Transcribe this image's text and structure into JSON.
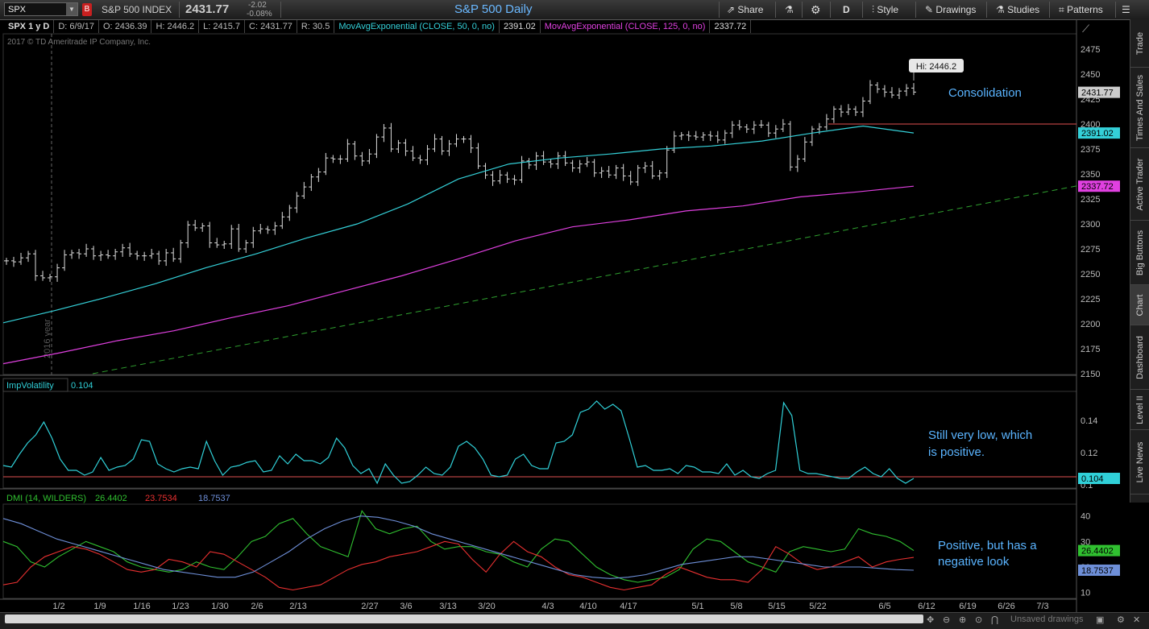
{
  "toolbar": {
    "symbol": "SPX",
    "symbol_badge": "B",
    "symbol_name": "S&P 500 INDEX",
    "last_price": "2431.77",
    "change": "-2.02",
    "change_pct": "-0.08%",
    "chart_title": "S&P 500 Daily",
    "share": "Share",
    "timeframe": "D",
    "style": "Style",
    "drawings": "Drawings",
    "studies": "Studies",
    "patterns": "Patterns"
  },
  "info_bar": {
    "symbol_period": "SPX 1 y D",
    "date": "D: 6/9/17",
    "open": "O: 2436.39",
    "high": "H: 2446.2",
    "low": "L: 2415.7",
    "close": "C: 2431.77",
    "range": "R: 30.5",
    "ema50_label": "MovAvgExponential (CLOSE, 50, 0, no)",
    "ema50_value": "2391.02",
    "ema125_label": "MovAvgExponential (CLOSE, 125, 0, no)",
    "ema125_value": "2337.72"
  },
  "copyright": "2017 © TD Ameritrade IP Company, Inc.",
  "colors": {
    "ema50": "#34d0d8",
    "ema125": "#e040e0",
    "trend": "#2fa02f",
    "resistance": "#e05050",
    "annotation": "#5ab4ff",
    "adx": "#6e8fd8",
    "di_plus": "#30c030",
    "di_minus": "#e83030",
    "iv": "#30d0d8"
  },
  "sidebar": [
    "Trade",
    "Times And Sales",
    "Active Trader",
    "Big Buttons",
    "Chart",
    "Dashboard",
    "Level II",
    "Live News"
  ],
  "bottom": {
    "unsaved": "Unsaved drawings"
  },
  "chart_data": [
    {
      "type": "ohlc",
      "title": "S&P 500 Daily",
      "ylim": [
        2150,
        2475
      ],
      "yticks": [
        2150,
        2175,
        2200,
        2225,
        2250,
        2275,
        2300,
        2325,
        2350,
        2375,
        2400,
        2425,
        2450,
        2475
      ],
      "xticks": [
        "1/2",
        "1/9",
        "1/16",
        "1/23",
        "1/30",
        "2/6",
        "2/13",
        "2/27",
        "3/6",
        "3/13",
        "3/20",
        "4/3",
        "4/10",
        "4/17",
        "5/1",
        "5/8",
        "5/15",
        "5/22",
        "6/5",
        "6/12",
        "6/19",
        "6/26",
        "7/3"
      ],
      "year_marker": "2016 year",
      "high_label": "Hi: 2446.2",
      "annotation": "Consolidation",
      "price_flag": "2431.77",
      "ema50_flag": "2391.02",
      "ema125_flag": "2337.72",
      "closes": [
        2263,
        2262,
        2266,
        2270,
        2248,
        2246,
        2247,
        2256,
        2269,
        2271,
        2270,
        2275,
        2268,
        2269,
        2268,
        2272,
        2276,
        2270,
        2268,
        2268,
        2270,
        2263,
        2271,
        2265,
        2281,
        2299,
        2296,
        2298,
        2281,
        2279,
        2280,
        2295,
        2275,
        2281,
        2293,
        2295,
        2294,
        2298,
        2307,
        2316,
        2328,
        2337,
        2347,
        2352,
        2366,
        2365,
        2365,
        2380,
        2368,
        2363,
        2370,
        2387,
        2396,
        2375,
        2381,
        2373,
        2366,
        2364,
        2375,
        2385,
        2373,
        2380,
        2385,
        2385,
        2376,
        2358,
        2349,
        2343,
        2349,
        2345,
        2344,
        2363,
        2359,
        2368,
        2362,
        2360,
        2368,
        2361,
        2356,
        2360,
        2362,
        2351,
        2353,
        2349,
        2356,
        2348,
        2342,
        2356,
        2358,
        2348,
        2351,
        2374,
        2388,
        2389,
        2388,
        2387,
        2389,
        2388,
        2384,
        2391,
        2399,
        2397,
        2395,
        2399,
        2399,
        2391,
        2395,
        2400,
        2357,
        2365,
        2382,
        2395,
        2397,
        2405,
        2415,
        2412,
        2415,
        2412,
        2423,
        2439,
        2435,
        2432,
        2429,
        2433,
        2436,
        2432
      ],
      "ema50": [
        2201,
        2213,
        2226,
        2240,
        2256,
        2270,
        2286,
        2300,
        2320,
        2345,
        2360,
        2366,
        2370,
        2375,
        2378,
        2383,
        2391,
        2398,
        2391.02
      ],
      "ema125": [
        2160,
        2171,
        2183,
        2193,
        2206,
        2218,
        2233,
        2248,
        2265,
        2283,
        2297,
        2304,
        2313,
        2318,
        2327,
        2332,
        2337.72
      ],
      "trendline": {
        "from": {
          "x": "1/6",
          "y": 2150
        },
        "to": {
          "x": "7/6",
          "y": 2338
        }
      },
      "resistance": 2400
    },
    {
      "type": "line",
      "title": "ImpVolatility",
      "value_label": "0.104",
      "ylim": [
        0.1,
        0.15
      ],
      "yticks": [
        "0.14",
        "0.12",
        "0.1"
      ],
      "annotation": [
        "Still very low, which",
        "is positive."
      ],
      "threshold": 0.105,
      "values": [
        0.112,
        0.111,
        0.119,
        0.126,
        0.131,
        0.139,
        0.129,
        0.116,
        0.109,
        0.109,
        0.106,
        0.108,
        0.117,
        0.109,
        0.111,
        0.112,
        0.116,
        0.128,
        0.127,
        0.113,
        0.11,
        0.108,
        0.11,
        0.111,
        0.11,
        0.127,
        0.115,
        0.106,
        0.111,
        0.112,
        0.114,
        0.115,
        0.108,
        0.109,
        0.118,
        0.113,
        0.119,
        0.115,
        0.115,
        0.113,
        0.117,
        0.129,
        0.123,
        0.112,
        0.107,
        0.11,
        0.101,
        0.113,
        0.106,
        0.101,
        0.102,
        0.106,
        0.111,
        0.107,
        0.106,
        0.111,
        0.124,
        0.127,
        0.123,
        0.116,
        0.106,
        0.105,
        0.106,
        0.116,
        0.119,
        0.112,
        0.11,
        0.11,
        0.126,
        0.127,
        0.131,
        0.145,
        0.147,
        0.152,
        0.147,
        0.15,
        0.146,
        0.129,
        0.111,
        0.112,
        0.109,
        0.109,
        0.11,
        0.107,
        0.112,
        0.111,
        0.108,
        0.108,
        0.107,
        0.113,
        0.106,
        0.109,
        0.105,
        0.104,
        0.107,
        0.109,
        0.151,
        0.143,
        0.109,
        0.107,
        0.107,
        0.106,
        0.105,
        0.104,
        0.104,
        0.108,
        0.111,
        0.107,
        0.105,
        0.11,
        0.104,
        0.101,
        0.104
      ]
    },
    {
      "type": "line",
      "title": "DMI (14, WILDERS)",
      "ylim": [
        10,
        40
      ],
      "yticks": [
        "40",
        "30",
        "20",
        "10"
      ],
      "labels": {
        "di_plus": "26.4402",
        "di_minus": "23.7534",
        "adx": "18.7537"
      },
      "annotation": [
        "Positive, but has a",
        "negative look"
      ],
      "series": [
        {
          "name": "26.4402",
          "key": "di_plus",
          "values": [
            30,
            28,
            22,
            20,
            24,
            27,
            30,
            28,
            26,
            22,
            20,
            19,
            18,
            19,
            22,
            20,
            19,
            24,
            30,
            32,
            37,
            39,
            33,
            28,
            26,
            24,
            42,
            35,
            33,
            35,
            36,
            30,
            27,
            28,
            28,
            26,
            25,
            22,
            20,
            27,
            31,
            30,
            25,
            20,
            17,
            15,
            14,
            15,
            16,
            19,
            27,
            31,
            30,
            26,
            22,
            20,
            18,
            26,
            28,
            27,
            26,
            27,
            35,
            33,
            32,
            30,
            26.44
          ]
        },
        {
          "name": "23.7534",
          "key": "di_minus",
          "values": [
            13,
            14,
            20,
            24,
            26,
            28,
            27,
            25,
            22,
            19,
            18,
            19,
            23,
            22,
            20,
            26,
            25,
            22,
            19,
            16,
            12,
            11,
            12,
            13,
            16,
            19,
            21,
            22,
            24,
            25,
            26,
            28,
            30,
            29,
            23,
            18,
            25,
            30,
            26,
            24,
            20,
            17,
            16,
            14,
            12,
            11,
            12,
            13,
            17,
            20,
            18,
            16,
            15,
            15,
            14,
            19,
            28,
            25,
            21,
            19,
            20,
            22,
            24,
            20,
            22,
            23,
            23.75
          ]
        },
        {
          "name": "18.7537",
          "key": "adx",
          "values": [
            39,
            37,
            34,
            31,
            29,
            27,
            25,
            23,
            21,
            19,
            18,
            17,
            16,
            16,
            18,
            22,
            26,
            31,
            35,
            38,
            40,
            39.5,
            38,
            36,
            33,
            31,
            29,
            27,
            25,
            23,
            21,
            19,
            17,
            16,
            15.5,
            16,
            17,
            19,
            21,
            22,
            23,
            24,
            24,
            23,
            22,
            21,
            20,
            20,
            20,
            19.5,
            19,
            18.75
          ]
        }
      ]
    }
  ]
}
